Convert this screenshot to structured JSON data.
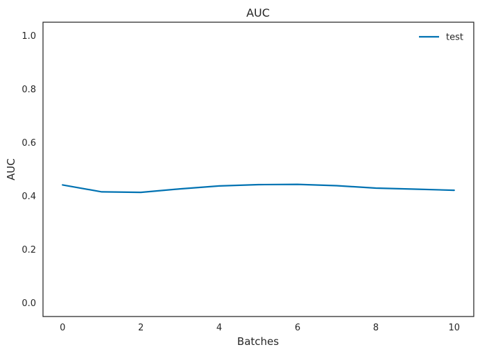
{
  "chart_data": {
    "type": "line",
    "title": "AUC",
    "xlabel": "Batches",
    "ylabel": "AUC",
    "xlim": [
      -0.5,
      10.5
    ],
    "ylim": [
      -0.05,
      1.05
    ],
    "xticks": [
      0,
      2,
      4,
      6,
      8,
      10
    ],
    "xtick_labels": [
      "0",
      "2",
      "4",
      "6",
      "8",
      "10"
    ],
    "yticks": [
      0.0,
      0.2,
      0.4,
      0.6,
      0.8,
      1.0
    ],
    "ytick_labels": [
      "0.0",
      "0.2",
      "0.4",
      "0.6",
      "0.8",
      "1.0"
    ],
    "grid": false,
    "legend_position": "top-right",
    "series": [
      {
        "name": "test",
        "color": "#0072b2",
        "x": [
          0,
          1,
          2,
          3,
          4,
          5,
          6,
          7,
          8,
          9,
          10
        ],
        "y": [
          0.442,
          0.416,
          0.414,
          0.427,
          0.438,
          0.443,
          0.444,
          0.439,
          0.43,
          0.426,
          0.422
        ]
      }
    ]
  }
}
